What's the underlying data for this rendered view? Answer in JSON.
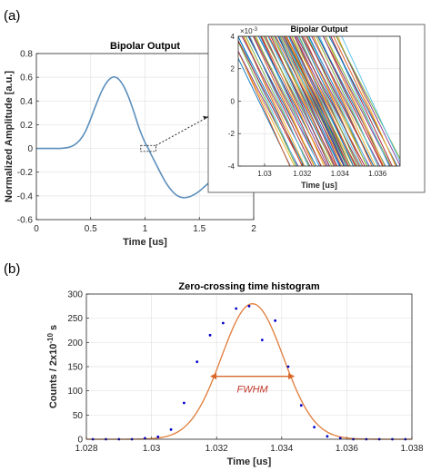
{
  "panel_labels": [
    "(a)",
    "(b)"
  ],
  "fwhm_label": "FWHM",
  "colors": {
    "pulse": "#5b8fbd",
    "fit": "#e07b39",
    "dots": "#0000cc",
    "arrow": "#d9672a",
    "fwhm_text": "#c0392b",
    "grid": "#e3e3e3",
    "axis": "#262626",
    "connector": "#262626"
  },
  "chart_data": [
    {
      "id": "bipolar_main",
      "type": "line",
      "title": "Bipolar Output",
      "xlabel": "Time [us]",
      "ylabel": "Normalized Amplitude [a.u.]",
      "xlim": [
        0,
        2
      ],
      "ylim": [
        -0.6,
        0.8
      ],
      "xticks": [
        0,
        0.5,
        1,
        1.5,
        2
      ],
      "xtick_labels": [
        "0",
        "0.5",
        "1",
        "1.5",
        "2"
      ],
      "yticks": [
        -0.6,
        -0.4,
        -0.2,
        0,
        0.2,
        0.4,
        0.6,
        0.8
      ],
      "ytick_labels": [
        "-0.6",
        "-0.4",
        "-0.2",
        "0",
        "0.2",
        "0.4",
        "0.6",
        "0.8"
      ],
      "grid": true,
      "series": [
        {
          "x": [
            0,
            0.2,
            0.25,
            0.3,
            0.35,
            0.4,
            0.45,
            0.5,
            0.55,
            0.6,
            0.65,
            0.7,
            0.75,
            0.8,
            0.85,
            0.9,
            0.95,
            1.0,
            1.03,
            1.05,
            1.1,
            1.15,
            1.2,
            1.25,
            1.3,
            1.35,
            1.4,
            1.45,
            1.5,
            1.55,
            1.6,
            1.65,
            1.7,
            1.75
          ],
          "y": [
            0,
            0,
            0.003,
            0.01,
            0.03,
            0.07,
            0.14,
            0.25,
            0.37,
            0.48,
            0.56,
            0.6,
            0.59,
            0.53,
            0.43,
            0.3,
            0.16,
            0.05,
            0.0,
            -0.04,
            -0.13,
            -0.22,
            -0.3,
            -0.36,
            -0.4,
            -0.415,
            -0.41,
            -0.39,
            -0.36,
            -0.32,
            -0.28,
            -0.24,
            -0.22,
            -0.19
          ]
        }
      ],
      "zoom_box": {
        "xlim": [
          0.96,
          1.1
        ],
        "ylim": [
          -0.025,
          0.025
        ]
      }
    },
    {
      "id": "bipolar_inset",
      "type": "line",
      "title": "Bipolar Output",
      "xlabel": "Time [us]",
      "ylabel": "",
      "exponent_label": "×10",
      "exponent_power": "-3",
      "xlim": [
        1.0286,
        1.0372
      ],
      "ylim": [
        -4,
        4
      ],
      "xticks": [
        1.03,
        1.032,
        1.034,
        1.036
      ],
      "xtick_labels": [
        "1.03",
        "1.032",
        "1.034",
        "1.036"
      ],
      "yticks": [
        -4,
        -2,
        0,
        2,
        4
      ],
      "ytick_labels": [
        "-4",
        "-2",
        "0",
        "2",
        "4"
      ],
      "grid": true,
      "trace_count": 90,
      "zero_crossing_range": [
        1.0297,
        1.0357
      ],
      "slope_per_us": -2.4,
      "trace_colors": [
        "#0072bd",
        "#d95319",
        "#edb120",
        "#7e2f8e",
        "#77ac30",
        "#4dbeee",
        "#a2142f"
      ]
    },
    {
      "id": "histogram",
      "type": "scatter",
      "title": "Zero-crossing time histogram",
      "xlabel": "Time [us]",
      "ylabel": "Counts / 2x10",
      "ylabel_power": "-10",
      "ylabel_unit": "s",
      "xlim": [
        1.028,
        1.038
      ],
      "ylim": [
        0,
        300
      ],
      "xticks": [
        1.028,
        1.03,
        1.032,
        1.034,
        1.036,
        1.038
      ],
      "xtick_labels": [
        "1.028",
        "1.03",
        "1.032",
        "1.034",
        "1.036",
        "1.038"
      ],
      "yticks": [
        0,
        50,
        100,
        150,
        200,
        250,
        300
      ],
      "ytick_labels": [
        "0",
        "50",
        "100",
        "150",
        "200",
        "250",
        "300"
      ],
      "grid": true,
      "series": [
        {
          "type": "scatter",
          "x": [
            1.0282,
            1.0286,
            1.029,
            1.0294,
            1.0298,
            1.0302,
            1.0306,
            1.031,
            1.0314,
            1.0318,
            1.0322,
            1.0326,
            1.033,
            1.0334,
            1.0338,
            1.0342,
            1.0346,
            1.035,
            1.0354,
            1.0358,
            1.0362,
            1.0366,
            1.037,
            1.0374,
            1.0378
          ],
          "y": [
            0,
            0,
            0,
            0,
            2,
            5,
            20,
            75,
            160,
            215,
            240,
            270,
            275,
            205,
            245,
            150,
            70,
            25,
            6,
            2,
            0,
            0,
            0,
            0,
            0
          ]
        },
        {
          "type": "line",
          "model": "gaussian",
          "amplitude": 280,
          "mean": 1.0331,
          "sigma": 0.00095
        }
      ],
      "fwhm": [
        1.0318,
        1.0344
      ],
      "fwhm_y": 130
    }
  ]
}
